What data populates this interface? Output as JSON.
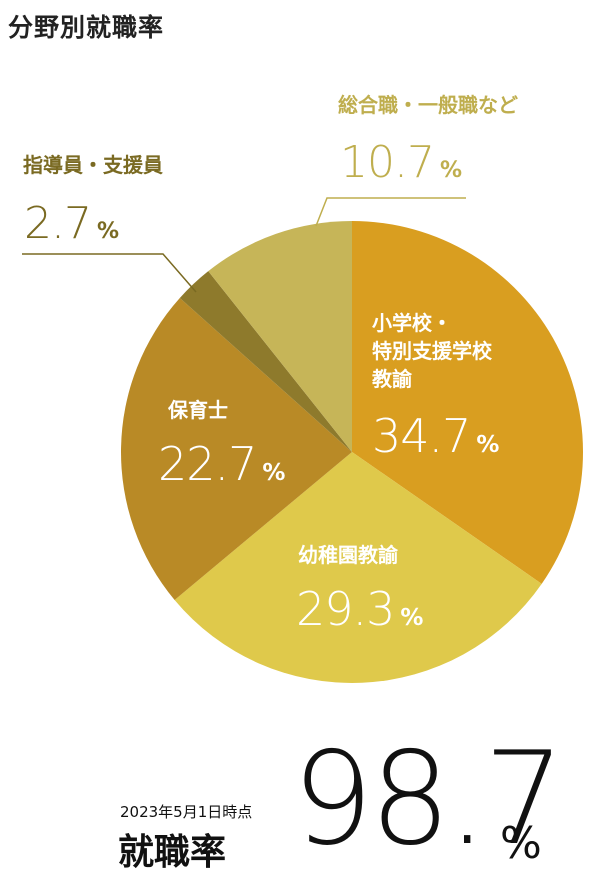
{
  "title": "分野別就職率",
  "footer": {
    "date": "2023年5月1日時点",
    "label": "就職率",
    "rate": "98.7",
    "unit": "%"
  },
  "chart_data": {
    "type": "pie",
    "title": "分野別就職率",
    "unit": "%",
    "slices": [
      {
        "label": "小学校・特別支援学校教諭",
        "label_lines": [
          "小学校・",
          "特別支援学校",
          "教諭"
        ],
        "value": 34.7,
        "value_text": "34.7",
        "color": "#D99E20",
        "label_color": "#ffffff"
      },
      {
        "label": "幼稚園教諭",
        "label_lines": [
          "幼稚園教諭"
        ],
        "value": 29.3,
        "value_text": "29.3",
        "color": "#DFC94B",
        "label_color": "#ffffff"
      },
      {
        "label": "保育士",
        "label_lines": [
          "保育士"
        ],
        "value": 22.7,
        "value_text": "22.7",
        "color": "#B98A26",
        "label_color": "#ffffff"
      },
      {
        "label": "指導員・支援員",
        "label_lines": [
          "指導員・支援員"
        ],
        "value": 2.7,
        "value_text": "2.7",
        "color": "#8E7A2C",
        "label_color": "#7A6A22"
      },
      {
        "label": "総合職・一般職など",
        "label_lines": [
          "総合職・一般職など"
        ],
        "value": 10.7,
        "value_text": "10.7",
        "color": "#C6B558",
        "label_color": "#BFAE4E"
      }
    ]
  }
}
